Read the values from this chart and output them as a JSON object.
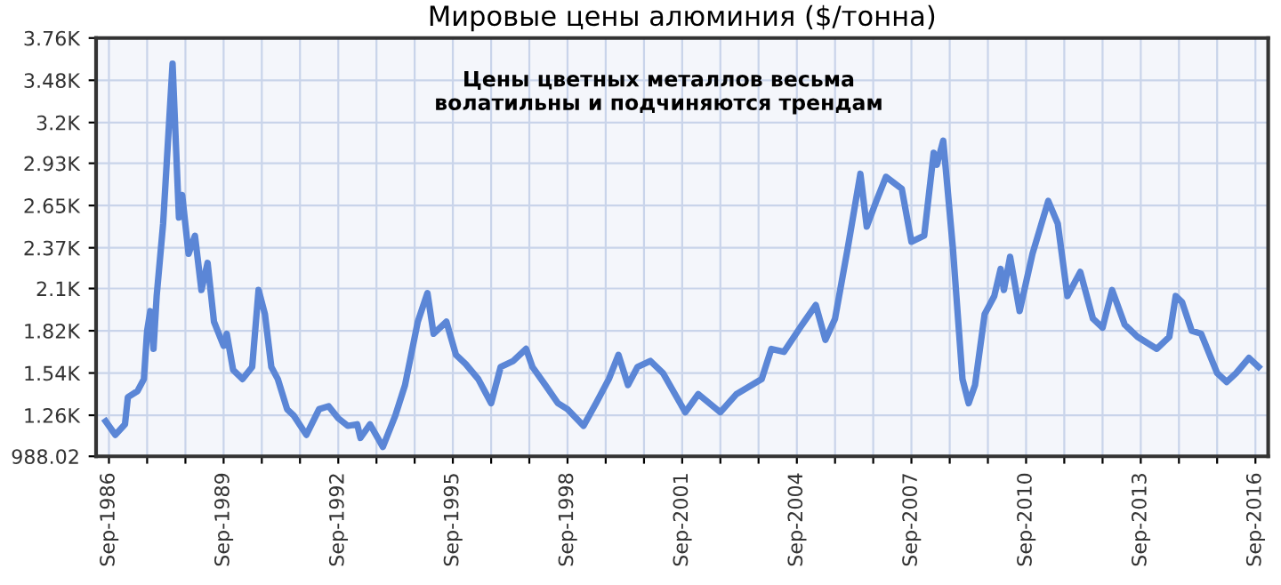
{
  "chart_data": {
    "type": "line",
    "title": "Мировые цены алюминия ($/тонна)",
    "annotations": [
      "Цены цветных металлов весьма\nволатильны и подчиняются трендам"
    ],
    "x": [
      "1986-08",
      "1986-11",
      "1987-02",
      "1987-03",
      "1987-06",
      "1987-08",
      "1987-09",
      "1987-10",
      "1987-11",
      "1987-12",
      "1988-02",
      "1988-05",
      "1988-07",
      "1988-08",
      "1988-10",
      "1988-12",
      "1989-02",
      "1989-04",
      "1989-06",
      "1989-09",
      "1989-10",
      "1989-12",
      "1990-03",
      "1990-06",
      "1990-08",
      "1990-10",
      "1990-12",
      "1991-02",
      "1991-05",
      "1991-07",
      "1991-11",
      "1992-03",
      "1992-06",
      "1992-09",
      "1992-12",
      "1993-03",
      "1993-04",
      "1993-07",
      "1993-11",
      "1994-03",
      "1994-06",
      "1994-10",
      "1995-01",
      "1995-03",
      "1995-07",
      "1995-10",
      "1996-01",
      "1996-05",
      "1996-09",
      "1996-12",
      "1997-04",
      "1997-08",
      "1997-10",
      "1998-02",
      "1998-06",
      "1998-09",
      "1999-02",
      "1999-06",
      "1999-10",
      "2000-01",
      "2000-04",
      "2000-07",
      "2000-11",
      "2001-03",
      "2001-10",
      "2002-02",
      "2002-09",
      "2003-02",
      "2003-10",
      "2004-01",
      "2004-05",
      "2004-10",
      "2005-03",
      "2005-06",
      "2005-09",
      "2006-01",
      "2006-05",
      "2006-07",
      "2006-10",
      "2007-01",
      "2007-06",
      "2007-09",
      "2008-01",
      "2008-04",
      "2008-05",
      "2008-07",
      "2008-10",
      "2009-01",
      "2009-03",
      "2009-05",
      "2009-08",
      "2009-11",
      "2010-01",
      "2010-02",
      "2010-04",
      "2010-07",
      "2010-11",
      "2011-04",
      "2011-07",
      "2011-10",
      "2012-02",
      "2012-06",
      "2012-09",
      "2012-12",
      "2013-04",
      "2013-08",
      "2014-02",
      "2014-06",
      "2014-08",
      "2014-10",
      "2015-01",
      "2015-04",
      "2015-09",
      "2015-12",
      "2016-03",
      "2016-07",
      "2016-10"
    ],
    "series": [
      {
        "color": "#5b86d6",
        "values": [
          1220,
          1130,
          1200,
          1380,
          1420,
          1500,
          1820,
          1950,
          1700,
          2050,
          2530,
          3590,
          2570,
          2720,
          2330,
          2450,
          2090,
          2270,
          1880,
          1720,
          1800,
          1560,
          1500,
          1580,
          2090,
          1930,
          1580,
          1500,
          1300,
          1260,
          1130,
          1300,
          1320,
          1240,
          1190,
          1200,
          1110,
          1200,
          1050,
          1260,
          1460,
          1880,
          2070,
          1800,
          1880,
          1660,
          1600,
          1500,
          1340,
          1580,
          1620,
          1700,
          1580,
          1460,
          1340,
          1300,
          1190,
          1340,
          1500,
          1660,
          1460,
          1580,
          1620,
          1540,
          1280,
          1400,
          1280,
          1400,
          1500,
          1700,
          1680,
          1840,
          1990,
          1760,
          1900,
          2370,
          2860,
          2510,
          2680,
          2840,
          2760,
          2410,
          2450,
          3000,
          2920,
          3080,
          2370,
          1500,
          1340,
          1460,
          1930,
          2050,
          2230,
          2090,
          2310,
          1950,
          2330,
          2680,
          2530,
          2050,
          2210,
          1900,
          1840,
          2090,
          1860,
          1780,
          1700,
          1780,
          2050,
          2010,
          1820,
          1800,
          1540,
          1480,
          1540,
          1640,
          1580
        ]
      }
    ],
    "xlim": [
      "1986-05",
      "2017-01"
    ],
    "xticks": [
      {
        "value": "1986-09",
        "label": "Sep-1986"
      },
      {
        "value": "1987-09",
        "label": null
      },
      {
        "value": "1988-09",
        "label": null
      },
      {
        "value": "1989-09",
        "label": "Sep-1989"
      },
      {
        "value": "1990-09",
        "label": null
      },
      {
        "value": "1991-09",
        "label": null
      },
      {
        "value": "1992-09",
        "label": "Sep-1992"
      },
      {
        "value": "1993-09",
        "label": null
      },
      {
        "value": "1994-09",
        "label": null
      },
      {
        "value": "1995-09",
        "label": "Sep-1995"
      },
      {
        "value": "1996-09",
        "label": null
      },
      {
        "value": "1997-09",
        "label": null
      },
      {
        "value": "1998-09",
        "label": "Sep-1998"
      },
      {
        "value": "1999-09",
        "label": null
      },
      {
        "value": "2000-09",
        "label": null
      },
      {
        "value": "2001-09",
        "label": "Sep-2001"
      },
      {
        "value": "2002-09",
        "label": null
      },
      {
        "value": "2003-09",
        "label": null
      },
      {
        "value": "2004-09",
        "label": "Sep-2004"
      },
      {
        "value": "2005-09",
        "label": null
      },
      {
        "value": "2006-09",
        "label": null
      },
      {
        "value": "2007-09",
        "label": "Sep-2007"
      },
      {
        "value": "2008-09",
        "label": null
      },
      {
        "value": "2009-09",
        "label": null
      },
      {
        "value": "2010-09",
        "label": "Sep-2010"
      },
      {
        "value": "2011-09",
        "label": null
      },
      {
        "value": "2012-09",
        "label": null
      },
      {
        "value": "2013-09",
        "label": "Sep-2013"
      },
      {
        "value": "2014-09",
        "label": null
      },
      {
        "value": "2015-09",
        "label": null
      },
      {
        "value": "2016-09",
        "label": "Sep-2016"
      }
    ],
    "ylim": [
      988.02,
      3760
    ],
    "yticks": [
      988.02,
      {
        "value": 1260,
        "label": "1.26K"
      },
      {
        "value": 1540,
        "label": "1.54K"
      },
      {
        "value": 1820,
        "label": "1.82K"
      },
      {
        "value": 2100,
        "label": "2.1K"
      },
      {
        "value": 2370,
        "label": "2.37K"
      },
      {
        "value": 2650,
        "label": "2.65K"
      },
      {
        "value": 2930,
        "label": "2.93K"
      },
      {
        "value": 3200,
        "label": "3.2K"
      },
      {
        "value": 3480,
        "label": "3.48K"
      },
      {
        "value": 3760,
        "label": "3.76K"
      }
    ],
    "grid": true,
    "legend": false,
    "marker": "none",
    "line_style": "solid"
  }
}
